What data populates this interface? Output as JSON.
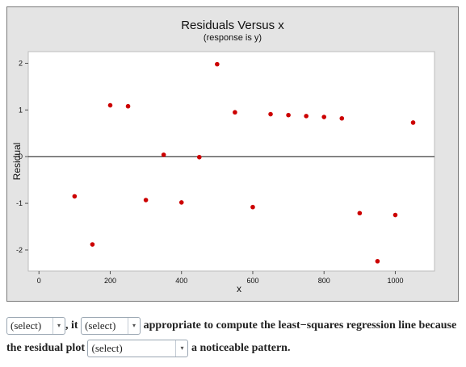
{
  "chart_data": {
    "type": "scatter",
    "title": "Residuals Versus x",
    "subtitle": "(response is y)",
    "xlabel": "x",
    "ylabel": "Residual",
    "xlim": [
      -30,
      1110
    ],
    "ylim": [
      -2.45,
      2.25
    ],
    "x_ticks": [
      0,
      200,
      400,
      600,
      800,
      1000
    ],
    "y_ticks": [
      -2,
      -1,
      0,
      1,
      2
    ],
    "reference_line_y": 0,
    "point_color": "#cc0000",
    "points": [
      {
        "x": 100,
        "y": -0.85
      },
      {
        "x": 150,
        "y": -1.88
      },
      {
        "x": 200,
        "y": 1.1
      },
      {
        "x": 250,
        "y": 1.08
      },
      {
        "x": 300,
        "y": -0.93
      },
      {
        "x": 350,
        "y": 0.04
      },
      {
        "x": 400,
        "y": -0.98
      },
      {
        "x": 450,
        "y": -0.01
      },
      {
        "x": 500,
        "y": 1.98
      },
      {
        "x": 550,
        "y": 0.95
      },
      {
        "x": 600,
        "y": -1.08
      },
      {
        "x": 650,
        "y": 0.91
      },
      {
        "x": 700,
        "y": 0.89
      },
      {
        "x": 750,
        "y": 0.87
      },
      {
        "x": 800,
        "y": 0.85
      },
      {
        "x": 850,
        "y": 0.82
      },
      {
        "x": 900,
        "y": -1.21
      },
      {
        "x": 950,
        "y": -2.24
      },
      {
        "x": 1000,
        "y": -1.25
      },
      {
        "x": 1050,
        "y": 0.73
      }
    ]
  },
  "question": {
    "select_1": "(select)",
    "text_1": ", it",
    "select_2": "(select)",
    "text_2": "appropriate to compute the least−squares regression line because",
    "text_3": "the residual plot",
    "select_3": "(select)",
    "text_4": "a noticeable pattern.",
    "arrow_glyph": "▾"
  }
}
